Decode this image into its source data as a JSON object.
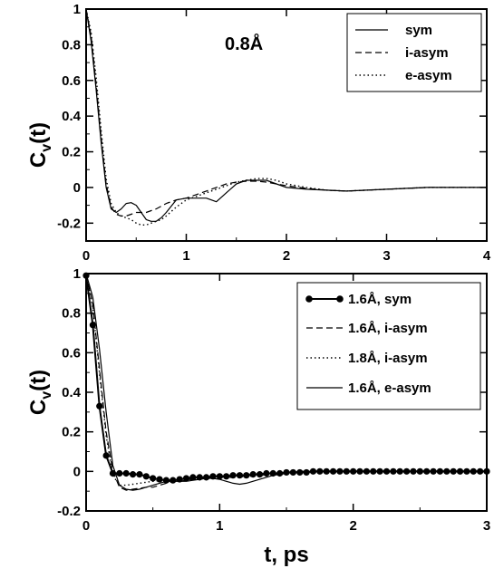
{
  "chart_data": [
    {
      "type": "line",
      "annotation": "0.8Å",
      "ylabel_main": "C",
      "ylabel_sub": "v",
      "ylabel_tail": "(t)",
      "xlim": [
        0,
        4
      ],
      "ylim": [
        -0.3,
        1.0
      ],
      "xticks": [
        0,
        1,
        2,
        3,
        4
      ],
      "yticks": [
        -0.2,
        0,
        0.2,
        0.4,
        0.6,
        0.8,
        1
      ],
      "ytick_labels": [
        "-0.2",
        "0",
        "0.2",
        "0.4",
        "0.6",
        "0.8",
        "1"
      ],
      "legend_position": "top-right",
      "series": [
        {
          "name": "sym",
          "style": "solid",
          "x": [
            0,
            0.05,
            0.1,
            0.15,
            0.2,
            0.25,
            0.3,
            0.35,
            0.4,
            0.45,
            0.5,
            0.55,
            0.6,
            0.65,
            0.7,
            0.75,
            0.8,
            0.9,
            1.0,
            1.1,
            1.2,
            1.3,
            1.4,
            1.5,
            1.6,
            1.7,
            1.8,
            1.9,
            2.0,
            2.2,
            2.4,
            2.6,
            2.8,
            3.0,
            3.2,
            3.4,
            3.6,
            3.8,
            4.0
          ],
          "y": [
            1.0,
            0.82,
            0.55,
            0.25,
            0.0,
            -0.12,
            -0.14,
            -0.12,
            -0.09,
            -0.085,
            -0.1,
            -0.14,
            -0.18,
            -0.19,
            -0.19,
            -0.17,
            -0.14,
            -0.07,
            -0.06,
            -0.06,
            -0.06,
            -0.08,
            -0.03,
            0.02,
            0.04,
            0.04,
            0.04,
            0.02,
            0.0,
            -0.01,
            -0.015,
            -0.02,
            -0.015,
            -0.01,
            -0.005,
            0.0,
            0.0,
            0.0,
            0.0
          ]
        },
        {
          "name": "i-asym",
          "style": "dashed",
          "x": [
            0,
            0.05,
            0.1,
            0.15,
            0.2,
            0.25,
            0.3,
            0.35,
            0.4,
            0.45,
            0.5,
            0.55,
            0.6,
            0.65,
            0.7,
            0.8,
            0.9,
            1.0,
            1.1,
            1.2,
            1.3,
            1.4,
            1.5,
            1.6,
            1.7,
            1.8,
            1.9,
            2.0,
            2.2,
            2.4,
            2.6,
            2.8,
            3.0,
            3.2,
            3.4,
            3.6,
            3.8,
            4.0
          ],
          "y": [
            1.0,
            0.85,
            0.58,
            0.28,
            0.02,
            -0.11,
            -0.15,
            -0.16,
            -0.16,
            -0.15,
            -0.14,
            -0.14,
            -0.14,
            -0.13,
            -0.12,
            -0.09,
            -0.07,
            -0.06,
            -0.04,
            -0.02,
            0.0,
            0.02,
            0.03,
            0.035,
            0.035,
            0.03,
            0.02,
            0.01,
            -0.005,
            -0.015,
            -0.02,
            -0.015,
            -0.01,
            -0.005,
            0.0,
            0.0,
            0.0,
            0.0
          ]
        },
        {
          "name": "e-asym",
          "style": "dotted",
          "x": [
            0,
            0.05,
            0.1,
            0.15,
            0.2,
            0.25,
            0.3,
            0.35,
            0.4,
            0.45,
            0.5,
            0.55,
            0.6,
            0.65,
            0.7,
            0.75,
            0.8,
            0.9,
            1.0,
            1.1,
            1.2,
            1.3,
            1.4,
            1.5,
            1.6,
            1.7,
            1.8,
            1.9,
            2.0,
            2.2,
            2.4,
            2.6,
            2.8,
            3.0,
            3.2,
            3.4,
            3.6,
            3.8,
            4.0
          ],
          "y": [
            1.0,
            0.87,
            0.62,
            0.32,
            0.05,
            -0.09,
            -0.14,
            -0.16,
            -0.17,
            -0.18,
            -0.2,
            -0.21,
            -0.21,
            -0.2,
            -0.19,
            -0.18,
            -0.16,
            -0.11,
            -0.07,
            -0.05,
            -0.03,
            -0.01,
            0.01,
            0.03,
            0.04,
            0.05,
            0.05,
            0.04,
            0.02,
            0.0,
            -0.015,
            -0.02,
            -0.015,
            -0.01,
            -0.005,
            0.0,
            0.0,
            0.0,
            0.0
          ]
        }
      ]
    },
    {
      "type": "line",
      "ylabel_main": "C",
      "ylabel_sub": "v",
      "ylabel_tail": "(t)",
      "xlabel": "t, ps",
      "xlim": [
        0,
        3
      ],
      "ylim": [
        -0.2,
        1.0
      ],
      "xticks": [
        0,
        1,
        2,
        3
      ],
      "yticks": [
        -0.2,
        0,
        0.2,
        0.4,
        0.6,
        0.8,
        1
      ],
      "ytick_labels": [
        "-0.2",
        "0",
        "0.2",
        "0.4",
        "0.6",
        "0.8",
        "1"
      ],
      "legend_position": "top-right",
      "series": [
        {
          "name": "1.6Å, sym",
          "style": "solid-marker",
          "x": [
            0,
            0.05,
            0.1,
            0.15,
            0.2,
            0.25,
            0.3,
            0.35,
            0.4,
            0.45,
            0.5,
            0.55,
            0.6,
            0.65,
            0.7,
            0.75,
            0.8,
            0.85,
            0.9,
            0.95,
            1.0,
            1.05,
            1.1,
            1.15,
            1.2,
            1.25,
            1.3,
            1.35,
            1.4,
            1.45,
            1.5,
            1.55,
            1.6,
            1.65,
            1.7,
            1.75,
            1.8,
            1.85,
            1.9,
            1.95,
            2.0,
            2.05,
            2.1,
            2.15,
            2.2,
            2.25,
            2.3,
            2.35,
            2.4,
            2.45,
            2.5,
            2.55,
            2.6,
            2.65,
            2.7,
            2.75,
            2.8,
            2.85,
            2.9,
            2.95,
            3.0
          ],
          "y": [
            0.99,
            0.74,
            0.33,
            0.08,
            -0.01,
            -0.01,
            -0.01,
            -0.015,
            -0.015,
            -0.025,
            -0.035,
            -0.04,
            -0.045,
            -0.045,
            -0.04,
            -0.035,
            -0.03,
            -0.03,
            -0.03,
            -0.025,
            -0.025,
            -0.025,
            -0.02,
            -0.02,
            -0.02,
            -0.015,
            -0.015,
            -0.01,
            -0.01,
            -0.01,
            -0.005,
            -0.005,
            -0.005,
            -0.005,
            0.0,
            0.0,
            0.0,
            0.0,
            0.0,
            0.0,
            0.0,
            0.0,
            0.0,
            0.0,
            0.0,
            0.0,
            0.0,
            0.0,
            0.0,
            0.0,
            0.0,
            0.0,
            0.0,
            0.0,
            0.0,
            0.0,
            0.0,
            0.0,
            0.0,
            0.0,
            0.0
          ]
        },
        {
          "name": "1.6Å, i-asym",
          "style": "dashed",
          "x": [
            0,
            0.05,
            0.1,
            0.15,
            0.2,
            0.25,
            0.3,
            0.35,
            0.4,
            0.45,
            0.5,
            0.55,
            0.6,
            0.65,
            0.7,
            0.8,
            0.9,
            1.0,
            1.1,
            1.2,
            1.3,
            1.4,
            1.5,
            1.6,
            1.8,
            2.0,
            2.2,
            2.4,
            2.6,
            2.8,
            3.0
          ],
          "y": [
            1.0,
            0.84,
            0.52,
            0.2,
            0.0,
            -0.08,
            -0.095,
            -0.09,
            -0.085,
            -0.08,
            -0.08,
            -0.07,
            -0.06,
            -0.05,
            -0.05,
            -0.04,
            -0.035,
            -0.03,
            -0.025,
            -0.02,
            -0.015,
            -0.01,
            -0.005,
            0.0,
            0.0,
            0.0,
            0.0,
            0.0,
            0.0,
            0.0,
            0.0
          ]
        },
        {
          "name": "1.8Å, i-asym",
          "style": "dotted",
          "x": [
            0,
            0.05,
            0.1,
            0.15,
            0.2,
            0.25,
            0.3,
            0.35,
            0.4,
            0.45,
            0.5,
            0.55,
            0.6,
            0.65,
            0.7,
            0.8,
            0.9,
            1.0,
            1.1,
            1.2,
            1.3,
            1.4,
            1.5,
            1.6,
            1.8,
            2.0,
            2.2,
            2.4,
            2.6,
            2.8,
            3.0
          ],
          "y": [
            1.0,
            0.83,
            0.5,
            0.18,
            -0.02,
            -0.07,
            -0.07,
            -0.065,
            -0.06,
            -0.055,
            -0.05,
            -0.045,
            -0.045,
            -0.045,
            -0.04,
            -0.04,
            -0.035,
            -0.03,
            -0.03,
            -0.025,
            -0.02,
            -0.015,
            -0.01,
            -0.005,
            0.0,
            0.0,
            0.0,
            0.0,
            0.0,
            0.0,
            0.0
          ]
        },
        {
          "name": "1.6Å, e-asym",
          "style": "solid",
          "x": [
            0,
            0.05,
            0.1,
            0.15,
            0.2,
            0.25,
            0.3,
            0.35,
            0.4,
            0.45,
            0.5,
            0.55,
            0.6,
            0.65,
            0.7,
            0.75,
            0.8,
            0.9,
            0.95,
            1.0,
            1.05,
            1.1,
            1.15,
            1.2,
            1.3,
            1.4,
            1.5,
            1.6,
            1.8,
            2.0,
            2.2,
            2.4,
            2.6,
            2.8,
            3.0
          ],
          "y": [
            1.0,
            0.88,
            0.62,
            0.3,
            0.03,
            -0.07,
            -0.09,
            -0.095,
            -0.09,
            -0.08,
            -0.07,
            -0.06,
            -0.05,
            -0.05,
            -0.05,
            -0.05,
            -0.045,
            -0.035,
            -0.035,
            -0.04,
            -0.05,
            -0.06,
            -0.065,
            -0.06,
            -0.04,
            -0.02,
            -0.01,
            0.0,
            0.0,
            0.0,
            0.0,
            0.0,
            0.0,
            0.0,
            0.0
          ]
        }
      ]
    }
  ]
}
